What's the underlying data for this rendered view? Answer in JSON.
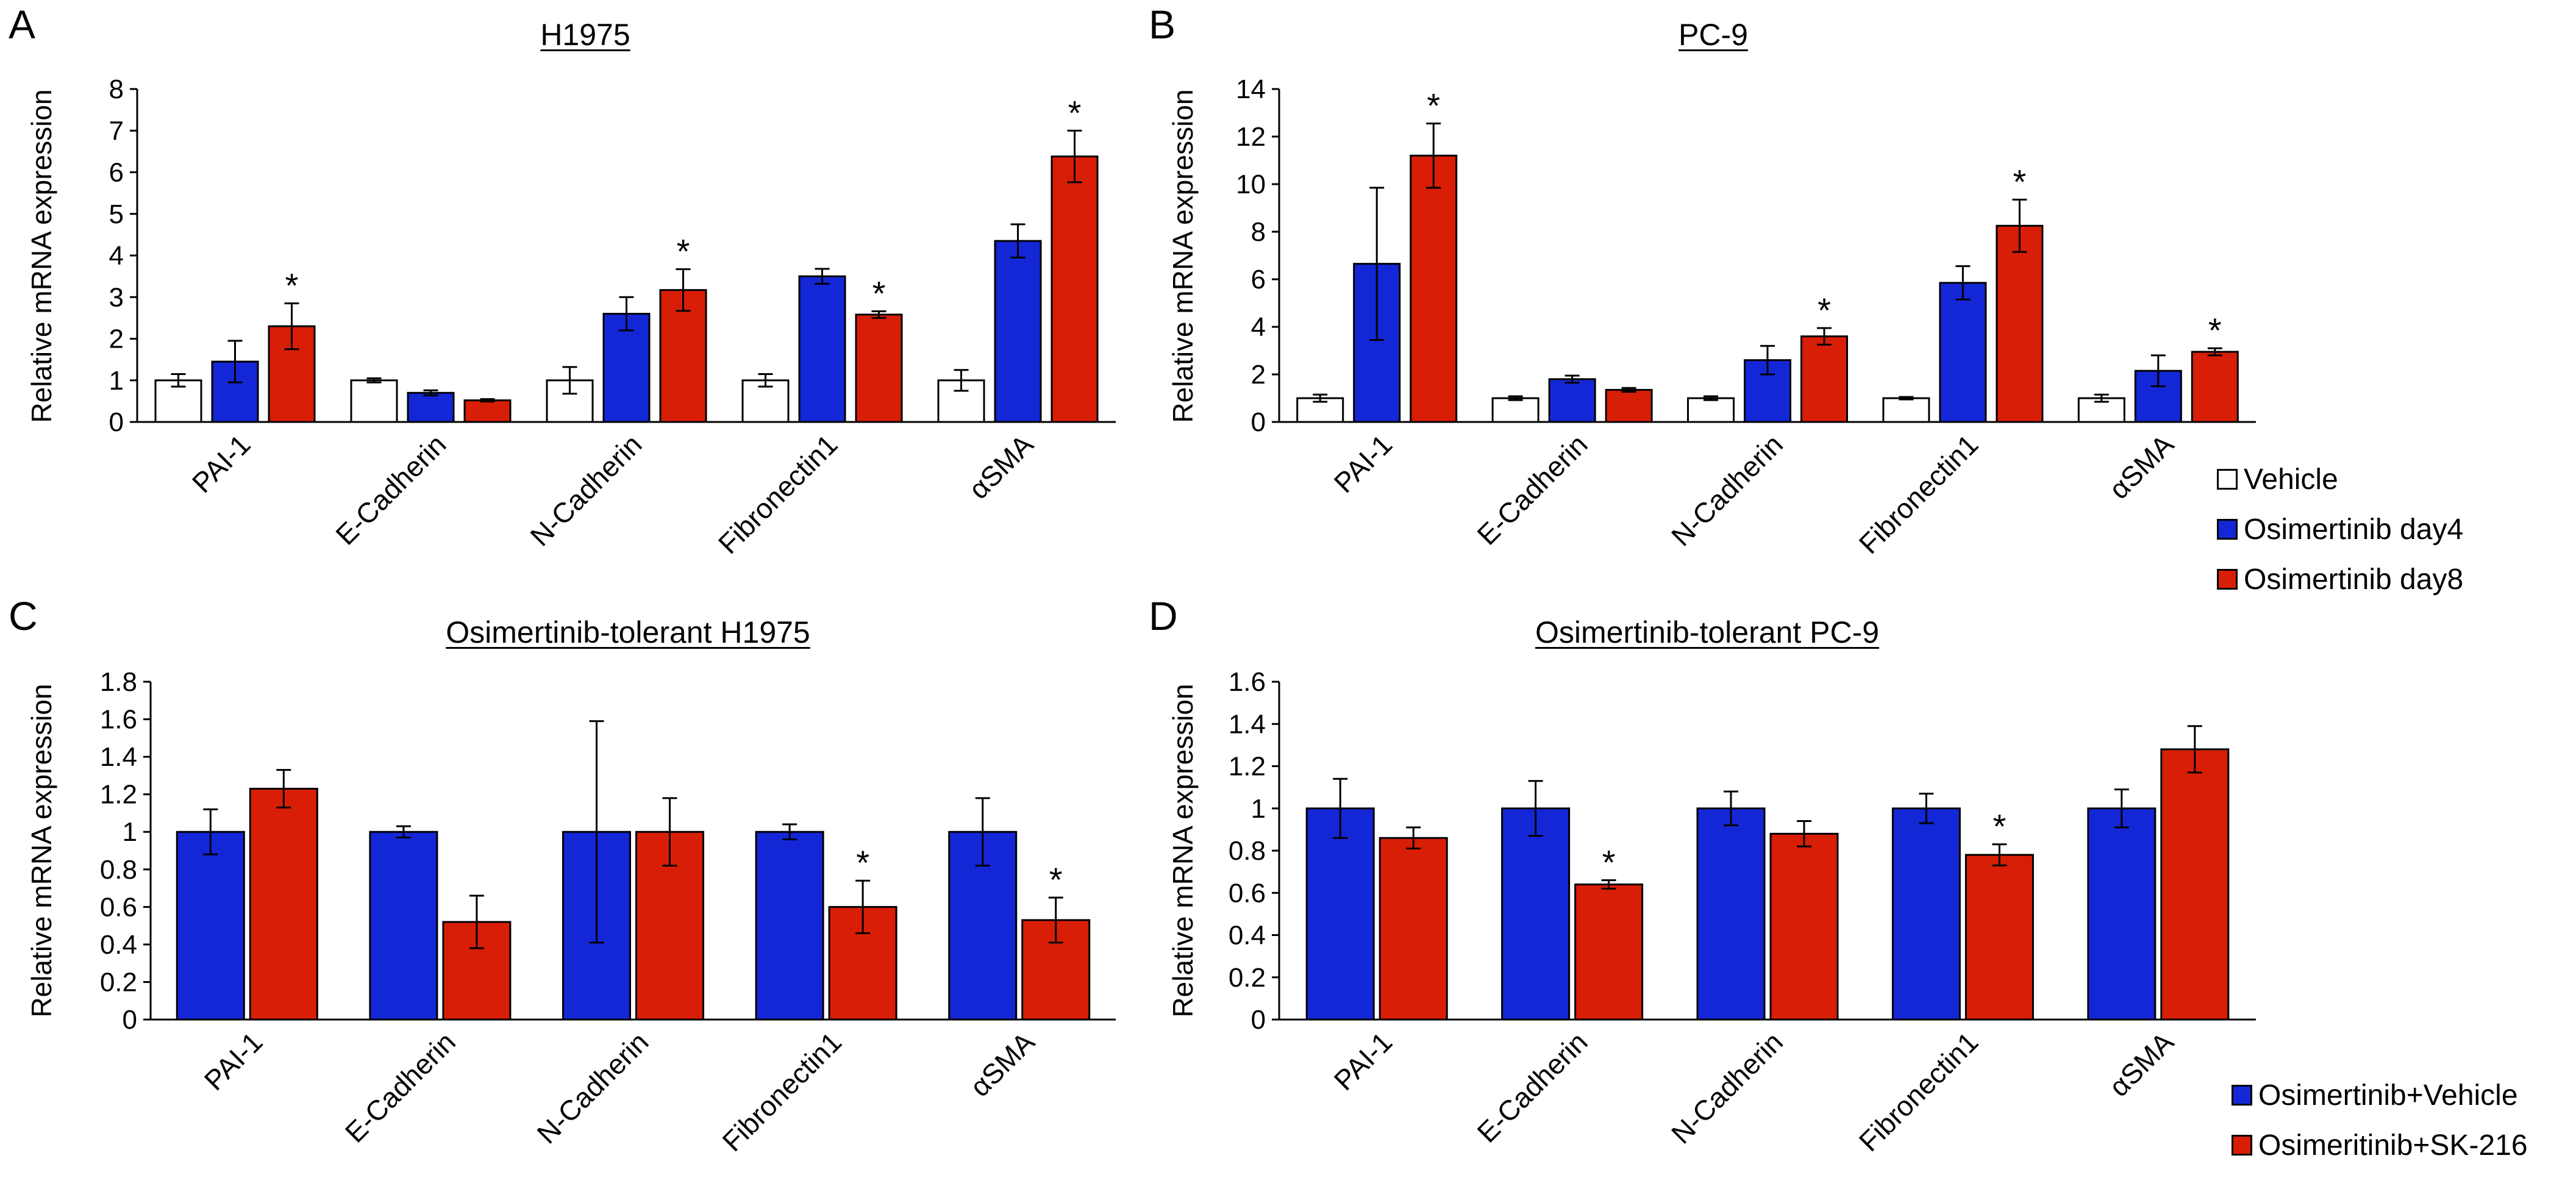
{
  "colors": {
    "vehicle": "#ffffff",
    "osimertinib_day4": "#1427d6",
    "osimertinib_day8": "#d81e06",
    "axis": "#000000"
  },
  "legend_top": {
    "items": [
      {
        "label": "Vehicle",
        "color": "#ffffff"
      },
      {
        "label": "Osimertinib day4",
        "color": "#1427d6"
      },
      {
        "label": "Osimertinib day8",
        "color": "#d81e06"
      }
    ]
  },
  "legend_bottom": {
    "items": [
      {
        "label": "Osimertinib+Vehicle",
        "color": "#1427d6"
      },
      {
        "label": "Osimeritinib+SK-216",
        "color": "#d81e06"
      }
    ]
  },
  "chart_data": [
    {
      "panel": "A",
      "type": "bar",
      "title": "H1975",
      "ylabel": "Relative mRNA expression",
      "xlabel": "",
      "ylim": [
        0,
        8
      ],
      "yticks": [
        "0",
        "1",
        "2",
        "3",
        "4",
        "5",
        "6",
        "7",
        "8"
      ],
      "categories": [
        "PAI-1",
        "E-Cadherin",
        "N-Cadherin",
        "Fibronectin1",
        "αSMA"
      ],
      "series": [
        {
          "name": "Vehicle",
          "color": "#ffffff",
          "values": [
            1.0,
            1.0,
            1.0,
            1.0,
            1.0
          ],
          "errors": [
            0.15,
            0.05,
            0.32,
            0.15,
            0.25
          ],
          "stars": [
            "",
            "",
            "",
            "",
            ""
          ]
        },
        {
          "name": "Osimertinib day4",
          "color": "#1427d6",
          "values": [
            1.45,
            0.7,
            2.6,
            3.5,
            4.35
          ],
          "errors": [
            0.5,
            0.06,
            0.4,
            0.18,
            0.4
          ],
          "stars": [
            "",
            "",
            "",
            "",
            ""
          ]
        },
        {
          "name": "Osimertinib day8",
          "color": "#d81e06",
          "values": [
            2.3,
            0.52,
            3.17,
            2.58,
            6.38
          ],
          "errors": [
            0.55,
            0.03,
            0.5,
            0.08,
            0.62
          ],
          "stars": [
            "*",
            "",
            "*",
            "*",
            "*"
          ]
        }
      ]
    },
    {
      "panel": "B",
      "type": "bar",
      "title": "PC-9",
      "ylabel": "Relative mRNA expression",
      "xlabel": "",
      "ylim": [
        0,
        14
      ],
      "yticks": [
        "0",
        "2",
        "4",
        "6",
        "8",
        "10",
        "12",
        "14"
      ],
      "categories": [
        "PAI-1",
        "E-Cadherin",
        "N-Cadherin",
        "Fibronectin1",
        "αSMA"
      ],
      "series": [
        {
          "name": "Vehicle",
          "color": "#ffffff",
          "values": [
            1.0,
            1.0,
            1.0,
            1.0,
            1.0
          ],
          "errors": [
            0.15,
            0.08,
            0.08,
            0.05,
            0.15
          ],
          "stars": [
            "",
            "",
            "",
            "",
            ""
          ]
        },
        {
          "name": "Osimertinib day4",
          "color": "#1427d6",
          "values": [
            6.65,
            1.8,
            2.6,
            5.85,
            2.15
          ],
          "errors": [
            3.2,
            0.15,
            0.6,
            0.7,
            0.65
          ],
          "stars": [
            "",
            "",
            "",
            "",
            ""
          ]
        },
        {
          "name": "Osimertinib day8",
          "color": "#d81e06",
          "values": [
            11.2,
            1.35,
            3.6,
            8.25,
            2.95
          ],
          "errors": [
            1.35,
            0.08,
            0.35,
            1.1,
            0.15
          ],
          "stars": [
            "*",
            "",
            "*",
            "*",
            "*"
          ]
        }
      ]
    },
    {
      "panel": "C",
      "type": "bar",
      "title": "Osimertinib-tolerant H1975",
      "ylabel": "Relative mRNA expression",
      "xlabel": "",
      "ylim": [
        0,
        1.8
      ],
      "yticks": [
        "0",
        "0.2",
        "0.4",
        "0.6",
        "0.8",
        "1",
        "1.2",
        "1.4",
        "1.6",
        "1.8"
      ],
      "categories": [
        "PAI-1",
        "E-Cadherin",
        "N-Cadherin",
        "Fibronectin1",
        "αSMA"
      ],
      "series": [
        {
          "name": "Osimertinib+Vehicle",
          "color": "#1427d6",
          "values": [
            1.0,
            1.0,
            1.0,
            1.0,
            1.0
          ],
          "errors": [
            0.12,
            0.03,
            0.59,
            0.04,
            0.18
          ],
          "stars": [
            "",
            "",
            "",
            "",
            ""
          ]
        },
        {
          "name": "Osimeritinib+SK-216",
          "color": "#d81e06",
          "values": [
            1.23,
            0.52,
            1.0,
            0.6,
            0.53
          ],
          "errors": [
            0.1,
            0.14,
            0.18,
            0.14,
            0.12
          ],
          "stars": [
            "",
            "",
            "",
            "*",
            "*"
          ]
        }
      ]
    },
    {
      "panel": "D",
      "type": "bar",
      "title": "Osimertinib-tolerant PC-9",
      "ylabel": "Relative mRNA expression",
      "xlabel": "",
      "ylim": [
        0,
        1.6
      ],
      "yticks": [
        "0",
        "0.2",
        "0.4",
        "0.6",
        "0.8",
        "1",
        "1.2",
        "1.4",
        "1.6"
      ],
      "categories": [
        "PAI-1",
        "E-Cadherin",
        "N-Cadherin",
        "Fibronectin1",
        "αSMA"
      ],
      "series": [
        {
          "name": "Osimertinib+Vehicle",
          "color": "#1427d6",
          "values": [
            1.0,
            1.0,
            1.0,
            1.0,
            1.0
          ],
          "errors": [
            0.14,
            0.13,
            0.08,
            0.07,
            0.09
          ],
          "stars": [
            "",
            "",
            "",
            "",
            ""
          ]
        },
        {
          "name": "Osimeritinib+SK-216",
          "color": "#d81e06",
          "values": [
            0.86,
            0.64,
            0.88,
            0.78,
            1.28
          ],
          "errors": [
            0.05,
            0.02,
            0.06,
            0.05,
            0.11
          ],
          "stars": [
            "",
            "*",
            "",
            "*",
            ""
          ]
        }
      ]
    }
  ]
}
